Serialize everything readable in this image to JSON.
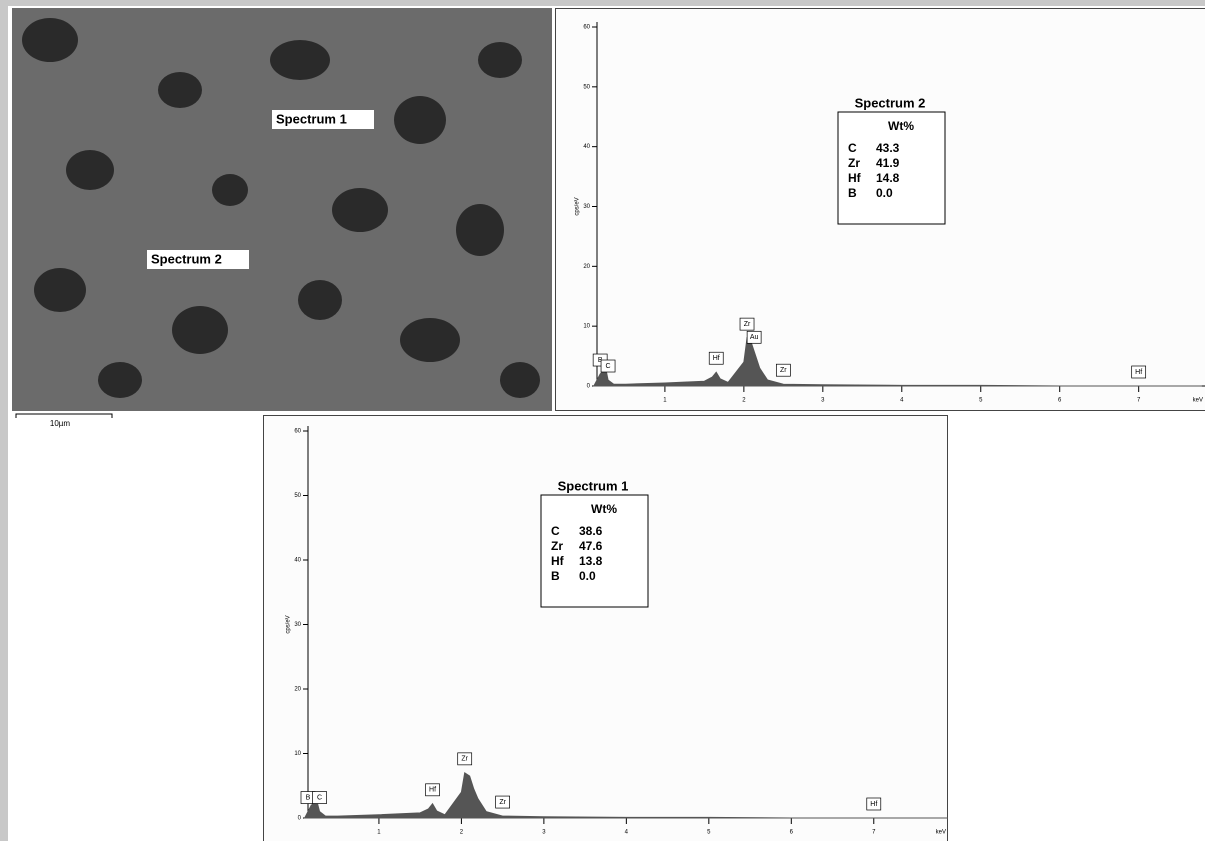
{
  "micrograph": {
    "labels": [
      "Spectrum 1",
      "Spectrum 2"
    ],
    "scale_bar": "10µm"
  },
  "chart_data": [
    {
      "type": "area",
      "title": "Spectrum 2",
      "ylabel": "cps/eV",
      "xlabel": "keV",
      "color": "#555555",
      "x": [
        0.1,
        0.18,
        0.25,
        0.28,
        0.35,
        0.5,
        1.0,
        1.5,
        1.6,
        1.65,
        1.7,
        1.8,
        2.0,
        2.04,
        2.1,
        2.15,
        2.2,
        2.3,
        2.5,
        3,
        4,
        5,
        6,
        7,
        7.8
      ],
      "values": [
        0,
        2,
        3,
        1,
        0.3,
        0.3,
        0.5,
        0.8,
        1.5,
        2.3,
        1.2,
        0.6,
        4,
        8,
        7,
        5,
        3,
        1,
        0.3,
        0.2,
        0.1,
        0.1,
        0,
        0,
        0
      ],
      "xlim": [
        0.14,
        7.84
      ],
      "ylim": [
        0,
        60
      ],
      "xticks": [
        1,
        2,
        3,
        4,
        5,
        6,
        7
      ],
      "yticks": [
        0,
        10,
        20,
        30,
        40,
        50,
        60
      ],
      "peaks": [
        {
          "label": "B",
          "x": 0.18
        },
        {
          "label": "C",
          "x": 0.28
        },
        {
          "label": "Hf",
          "x": 1.65
        },
        {
          "label": "Zr",
          "x": 2.04
        },
        {
          "label": "Au",
          "x": 2.13
        },
        {
          "label": "Zr",
          "x": 2.5
        },
        {
          "label": "Hf",
          "x": 7.0
        }
      ],
      "table": {
        "header": "Wt%",
        "rows": [
          [
            "C",
            "43.3"
          ],
          [
            "Zr",
            "41.9"
          ],
          [
            "Hf",
            "14.8"
          ],
          [
            "B",
            "0.0"
          ]
        ]
      }
    },
    {
      "type": "area",
      "title": "Spectrum 1",
      "ylabel": "cps/eV",
      "xlabel": "keV",
      "color": "#555555",
      "x": [
        0.1,
        0.18,
        0.25,
        0.28,
        0.35,
        0.5,
        1.0,
        1.5,
        1.6,
        1.65,
        1.7,
        1.8,
        2.0,
        2.04,
        2.1,
        2.15,
        2.2,
        2.3,
        2.5,
        3,
        4,
        5,
        6,
        7,
        7.9
      ],
      "values": [
        0,
        2,
        2.5,
        1,
        0.3,
        0.3,
        0.5,
        0.8,
        1.4,
        2.2,
        1.1,
        0.5,
        4,
        7,
        6.5,
        4.5,
        3,
        1,
        0.3,
        0.2,
        0.1,
        0.1,
        0,
        0,
        0
      ],
      "xlim": [
        0.14,
        7.9
      ],
      "ylim": [
        0,
        60
      ],
      "xticks": [
        1,
        2,
        3,
        4,
        5,
        6,
        7
      ],
      "yticks": [
        0,
        10,
        20,
        30,
        40,
        50,
        60
      ],
      "peaks": [
        {
          "label": "B",
          "x": 0.14
        },
        {
          "label": "C",
          "x": 0.28
        },
        {
          "label": "Hf",
          "x": 1.65
        },
        {
          "label": "Zr",
          "x": 2.04
        },
        {
          "label": "Zr",
          "x": 2.5
        },
        {
          "label": "Hf",
          "x": 7.0
        }
      ],
      "table": {
        "header": "Wt%",
        "rows": [
          [
            "C",
            "38.6"
          ],
          [
            "Zr",
            "47.6"
          ],
          [
            "Hf",
            "13.8"
          ],
          [
            "B",
            "0.0"
          ]
        ]
      }
    }
  ]
}
